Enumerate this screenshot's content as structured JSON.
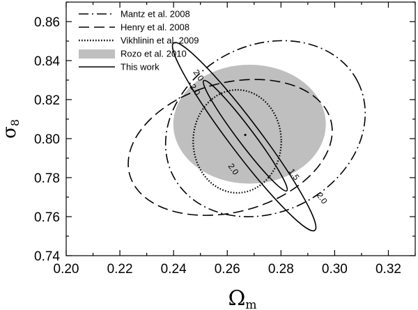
{
  "chart_data": {
    "type": "contour",
    "xlabel": "Ω",
    "xlabel_sub": "m",
    "ylabel": "σ",
    "ylabel_sub": "8",
    "xlim": [
      0.2,
      0.33
    ],
    "ylim": [
      0.74,
      0.87
    ],
    "xticks": [
      "0.20",
      "0.22",
      "0.24",
      "0.26",
      "0.28",
      "0.30",
      "0.32"
    ],
    "yticks": [
      "0.74",
      "0.76",
      "0.78",
      "0.80",
      "0.82",
      "0.84",
      "0.86"
    ],
    "legend_position": "top-left",
    "series": [
      {
        "name": "Mantz et al. 2008",
        "style": "dash-dot",
        "color": "#000000",
        "ellipse": {
          "center": [
            0.2742,
            0.8051
          ],
          "semi_axes": [
            0.0386,
            0.0428
          ],
          "tilt_deg": 27
        }
      },
      {
        "name": "Henry et al. 2008",
        "style": "dashed",
        "color": "#000000",
        "ellipse": {
          "center": [
            0.2611,
            0.7955
          ],
          "semi_axes": [
            0.0388,
            0.0331
          ],
          "tilt_deg": 15
        }
      },
      {
        "name": "Vikhlinin et al. 2009",
        "style": "dotted",
        "color": "#000000",
        "ellipse": {
          "center": [
            0.2637,
            0.7986
          ],
          "semi_axes": [
            0.0164,
            0.0264
          ],
          "tilt_deg": 0
        }
      },
      {
        "name": "Rozo et al. 2010",
        "style": "filled",
        "color": "#bfbfbf",
        "ellipse": {
          "center": [
            0.2683,
            0.8074
          ],
          "semi_axes": [
            0.0284,
            0.0305
          ],
          "tilt_deg": 0
        }
      },
      {
        "name": "This work",
        "style": "solid",
        "color": "#000000",
        "ellipses": [
          {
            "center": [
              0.2663,
              0.801
            ],
            "semi_axes": [
              0.0437,
              0.008
            ],
            "tilt_deg": -53
          },
          {
            "center": [
              0.2667,
              0.8015
            ],
            "semi_axes": [
              0.0257,
              0.0041
            ],
            "tilt_deg": -53
          }
        ],
        "best_fit": [
          0.2667,
          0.8019
        ]
      }
    ],
    "contour_labels": [
      {
        "text": "2.0",
        "x": 0.2491,
        "y": 0.8323
      },
      {
        "text": "2.0",
        "x": 0.2478,
        "y": 0.8249
      },
      {
        "text": "2.0",
        "x": 0.2621,
        "y": 0.7842
      },
      {
        "text": "2.0",
        "x": 0.2951,
        "y": 0.7693
      },
      {
        "text": "1.5",
        "x": 0.2847,
        "y": 0.7815
      }
    ]
  }
}
